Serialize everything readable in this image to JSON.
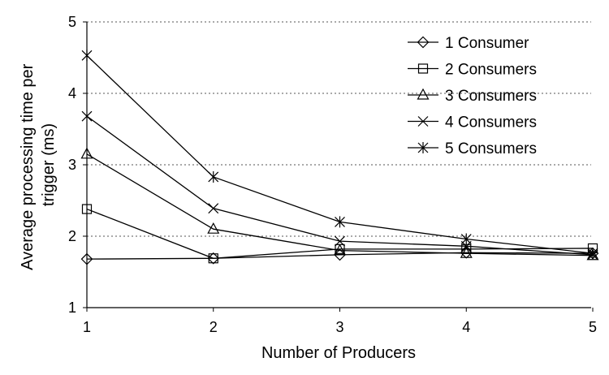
{
  "chart_data": {
    "type": "line",
    "title": "",
    "xlabel": "Number of Producers",
    "ylabel_lines": [
      "Average processing time per",
      "trigger (ms)"
    ],
    "x": [
      1,
      2,
      3,
      4,
      5
    ],
    "xlim": [
      1,
      5
    ],
    "ylim": [
      1,
      5
    ],
    "yticks": [
      1,
      2,
      3,
      4,
      5
    ],
    "xticks": [
      1,
      2,
      3,
      4,
      5
    ],
    "grid": "horizontal dotted",
    "legend_position": "top-right",
    "series": [
      {
        "name": "1 Consumer",
        "marker": "diamond",
        "values": [
          1.68,
          1.69,
          1.74,
          1.77,
          1.76
        ]
      },
      {
        "name": "2 Consumers",
        "marker": "square",
        "values": [
          2.38,
          1.69,
          1.82,
          1.82,
          1.83
        ]
      },
      {
        "name": "3 Consumers",
        "marker": "triangle",
        "values": [
          3.15,
          2.1,
          1.8,
          1.76,
          1.73
        ]
      },
      {
        "name": "4 Consumers",
        "marker": "x",
        "values": [
          3.68,
          2.39,
          1.93,
          1.86,
          1.74
        ]
      },
      {
        "name": "5 Consumers",
        "marker": "star",
        "values": [
          4.53,
          2.83,
          2.2,
          1.96,
          1.76
        ]
      }
    ]
  }
}
